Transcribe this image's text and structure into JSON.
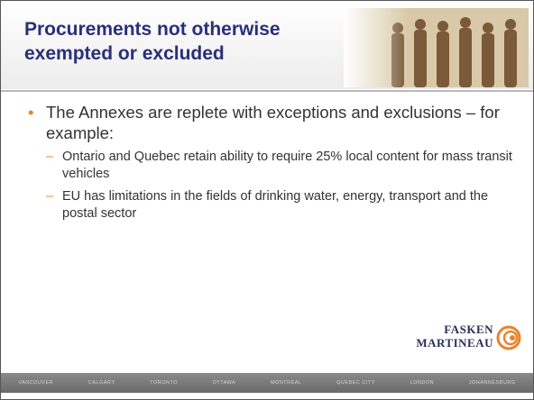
{
  "header": {
    "title": "Procurements not otherwise exempted or excluded"
  },
  "bullets": [
    {
      "text": "The Annexes are replete with exceptions and exclusions – for example:",
      "sub": [
        "Ontario and Quebec retain ability to require 25% local content for mass transit vehicles",
        "EU has limitations in the fields of drinking water, energy, transport and the postal sector"
      ]
    }
  ],
  "logo": {
    "line1": "FASKEN",
    "line2": "MARTINEAU"
  },
  "footer": {
    "cities": [
      "VANCOUVER",
      "CALGARY",
      "TORONTO",
      "OTTAWA",
      "MONTRÉAL",
      "QUÉBEC CITY",
      "LONDON",
      "JOHANNESBURG"
    ]
  }
}
